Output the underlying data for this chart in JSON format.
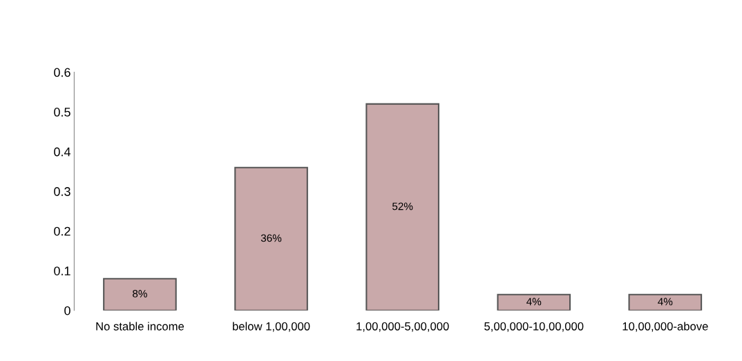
{
  "chart_data": {
    "type": "bar",
    "categories": [
      "No stable income",
      "below 1,00,000",
      "1,00,000-5,00,000",
      "5,00,000-10,00,000",
      "10,00,000-above"
    ],
    "values": [
      0.08,
      0.36,
      0.52,
      0.04,
      0.04
    ],
    "value_labels": [
      "8%",
      "36%",
      "52%",
      "4%",
      "4%"
    ],
    "color": "#c9a9aa",
    "ylim": [
      0,
      0.6
    ],
    "yticks": [
      0,
      0.1,
      0.2,
      0.3,
      0.4,
      0.5,
      0.6
    ],
    "grid": false,
    "legend": false
  }
}
